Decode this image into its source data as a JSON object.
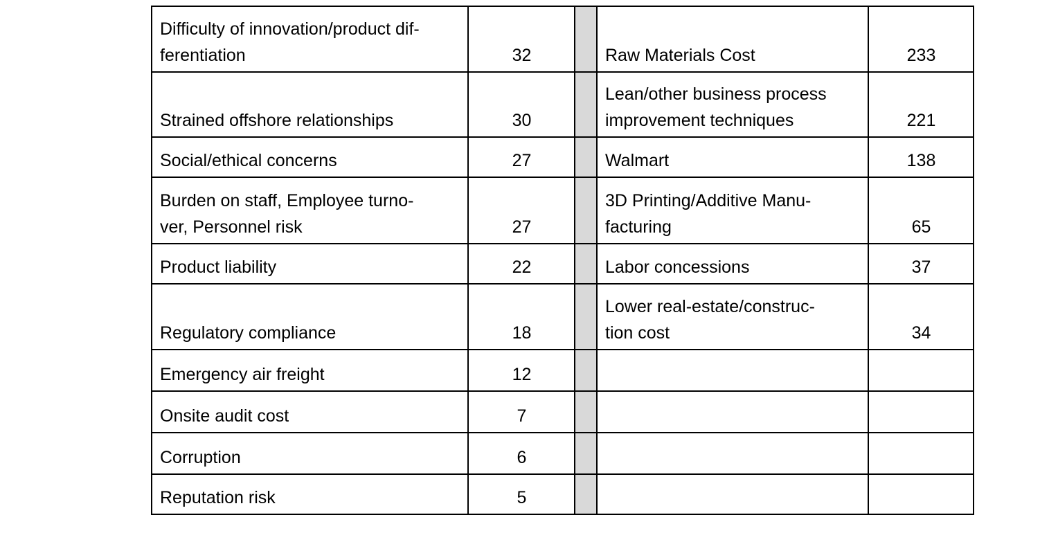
{
  "table": {
    "rows": [
      {
        "left_lines": [
          "Difficulty of innovation/product dif-",
          "ferentiation"
        ],
        "left_value": "32",
        "right_lines": [
          "Raw Materials Cost"
        ],
        "right_value": "233"
      },
      {
        "left_lines": [
          "Strained offshore relationships"
        ],
        "left_value": "30",
        "right_lines": [
          "Lean/other business process",
          "improvement techniques"
        ],
        "right_value": "221"
      },
      {
        "left_lines": [
          "Social/ethical concerns"
        ],
        "left_value": "27",
        "right_lines": [
          "Walmart"
        ],
        "right_value": "138"
      },
      {
        "left_lines": [
          "Burden on staff, Employee turno-",
          "ver, Personnel risk"
        ],
        "left_value": "27",
        "right_lines": [
          "3D Printing/Additive Manu-",
          "facturing"
        ],
        "right_value": "65"
      },
      {
        "left_lines": [
          "Product liability"
        ],
        "left_value": "22",
        "right_lines": [
          "Labor concessions"
        ],
        "right_value": "37"
      },
      {
        "left_lines": [
          "Regulatory compliance"
        ],
        "left_value": "18",
        "right_lines": [
          "Lower real-estate/construc-",
          "tion cost"
        ],
        "right_value": "34"
      },
      {
        "left_lines": [
          "Emergency air freight"
        ],
        "left_value": "12",
        "right_lines": [],
        "right_value": ""
      },
      {
        "left_lines": [
          "Onsite audit cost"
        ],
        "left_value": "7",
        "right_lines": [],
        "right_value": ""
      },
      {
        "left_lines": [
          "Corruption"
        ],
        "left_value": "6",
        "right_lines": [],
        "right_value": ""
      },
      {
        "left_lines": [
          "Reputation risk"
        ],
        "left_value": "5",
        "right_lines": [],
        "right_value": ""
      }
    ]
  },
  "colors": {
    "separator": "#d9d9d9",
    "border": "#000000"
  }
}
